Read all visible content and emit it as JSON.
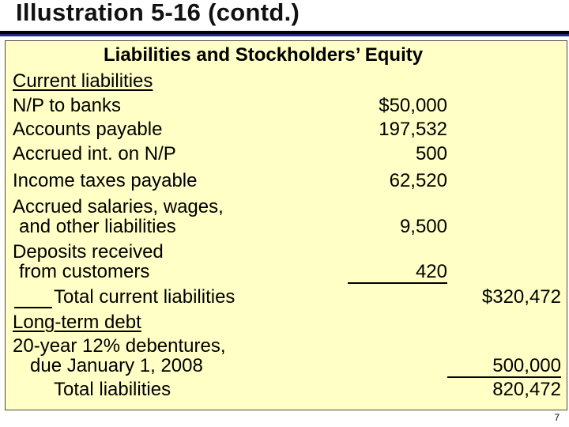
{
  "slide_title": "Illustration 5-16 (contd.)",
  "section_heading": "Liabilities and Stockholders’ Equity",
  "current_liabilities_heading": "Current liabilities",
  "current_items": [
    {
      "label": "N/P to banks",
      "amount": "$50,000"
    },
    {
      "label": "Accounts payable",
      "amount": "197,532"
    },
    {
      "label": "Accrued int. on N/P",
      "amount": "500"
    },
    {
      "label": "Income taxes payable",
      "amount": "62,520"
    },
    {
      "label_line1": "Accrued salaries, wages,",
      "label_line2": "and other liabilities",
      "amount": "9,500"
    },
    {
      "label_line1": "Deposits received",
      "label_line2": "from customers",
      "amount": "420"
    }
  ],
  "total_current": {
    "label": "Total current liabilities",
    "amount": "$320,472"
  },
  "long_term_heading": "Long-term debt",
  "long_term_item": {
    "label_line1": "20-year 12% debentures,",
    "label_line2": "due January 1, 2008",
    "amount": "500,000"
  },
  "total_liabilities": {
    "label": "Total liabilities",
    "amount": "820,472"
  },
  "page_number": "7"
}
